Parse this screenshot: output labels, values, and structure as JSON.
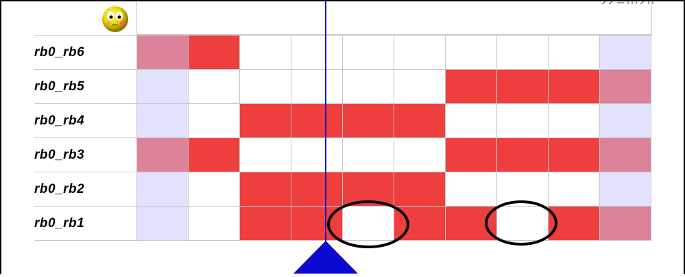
{
  "rows": [
    {
      "label": "rb0_rb6",
      "cells": [
        "p",
        "r",
        "w",
        "w",
        "w",
        "w",
        "w",
        "w",
        "w",
        "l"
      ]
    },
    {
      "label": "rb0_rb5",
      "cells": [
        "l",
        "w",
        "w",
        "w",
        "w",
        "w",
        "r",
        "r",
        "r",
        "p"
      ]
    },
    {
      "label": "rb0_rb4",
      "cells": [
        "l",
        "w",
        "r",
        "r",
        "r",
        "r",
        "w",
        "w",
        "w",
        "l"
      ]
    },
    {
      "label": "rb0_rb3",
      "cells": [
        "p",
        "r",
        "w",
        "w",
        "w",
        "w",
        "r",
        "r",
        "r",
        "p"
      ]
    },
    {
      "label": "rb0_rb2",
      "cells": [
        "l",
        "w",
        "r",
        "r",
        "r",
        "r",
        "w",
        "w",
        "w",
        "l"
      ]
    },
    {
      "label": "rb0_rb1",
      "cells": [
        "l",
        "w",
        "r",
        "r",
        "w",
        "r",
        "r",
        "w",
        "r",
        "p"
      ]
    }
  ],
  "cell_colors": {
    "r": "#ee3e3e",
    "p": "#dd8399",
    "l": "#e2e2fe",
    "w": "#ffffff"
  },
  "cursor_color": "#1010cc",
  "playhead_color": "#0a0ad0",
  "annotation_color": "#000000",
  "icons": {
    "status": "smiley-face-icon"
  }
}
